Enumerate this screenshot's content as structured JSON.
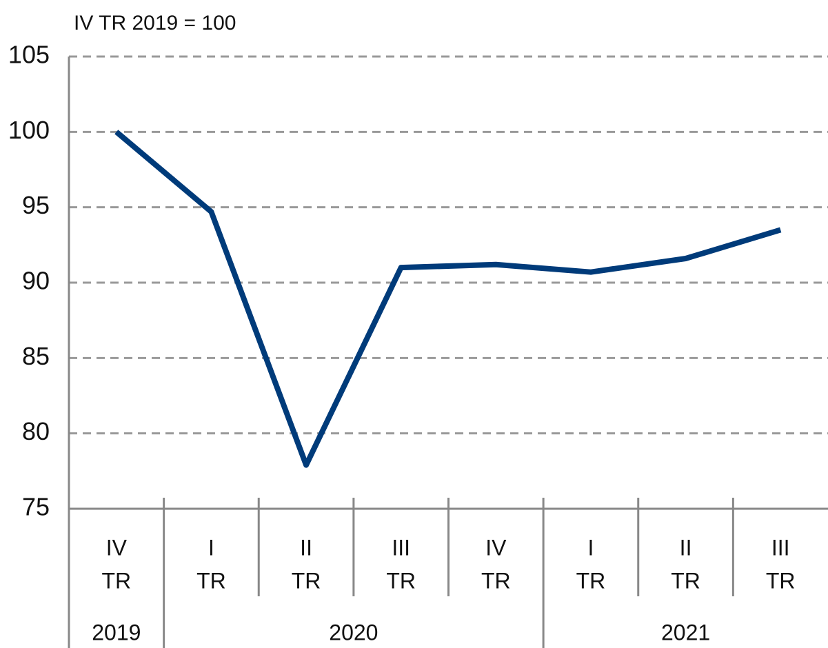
{
  "chart_data": {
    "type": "line",
    "title": "IV TR 2019 = 100",
    "categories": [
      [
        "IV",
        "TR"
      ],
      [
        "I",
        "TR"
      ],
      [
        "II",
        "TR"
      ],
      [
        "III",
        "TR"
      ],
      [
        "IV",
        "TR"
      ],
      [
        "I",
        "TR"
      ],
      [
        "II",
        "TR"
      ],
      [
        "III",
        "TR"
      ]
    ],
    "years": [
      "2019",
      "2020",
      "2020",
      "2020",
      "2020",
      "2021",
      "2021",
      "2021"
    ],
    "series": [
      {
        "color": "#003b7a",
        "values": [
          100,
          94.7,
          77.9,
          91.0,
          91.2,
          90.7,
          91.6,
          93.5
        ]
      }
    ],
    "ylim": [
      75,
      105
    ],
    "yticks": [
      75,
      80,
      85,
      90,
      95,
      100,
      105
    ],
    "grid": true
  }
}
